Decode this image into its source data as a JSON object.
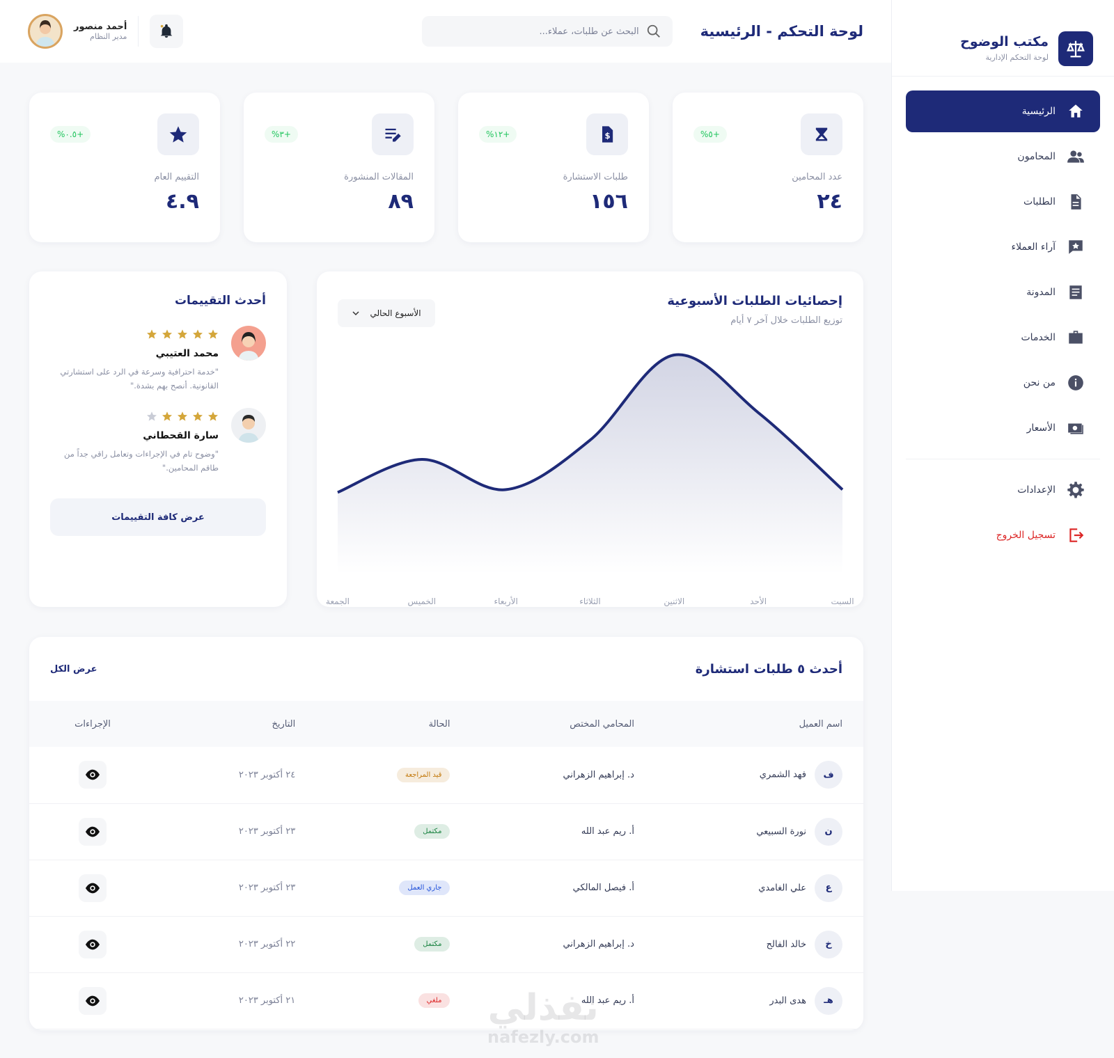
{
  "sidebar": {
    "brand": "مكتب الوضوح",
    "subtitle": "لوحة التحكم الإدارية",
    "nav": [
      "الرئيسية",
      "المحامون",
      "الطلبات",
      "آراء العملاء",
      "المدونة",
      "الخدمات",
      "من نحن",
      "الأسعار"
    ],
    "settings": "الإعدادات",
    "logout": "تسجيل الخروج"
  },
  "header": {
    "title": "لوحة التحكم - الرئيسية",
    "search_placeholder": "البحث عن طلبات، عملاء...",
    "user_name": "أحمد منصور",
    "user_role": "مدير النظام"
  },
  "stats": [
    {
      "label": "عدد المحامين",
      "value": "٢٤",
      "change": "+٥%"
    },
    {
      "label": "طلبات الاستشارة",
      "value": "١٥٦",
      "change": "+١٢%"
    },
    {
      "label": "المقالات المنشورة",
      "value": "٨٩",
      "change": "+٣%"
    },
    {
      "label": "التقييم العام",
      "value": "٤.٩",
      "change": "+٠.٥%"
    }
  ],
  "chart_data": {
    "type": "line",
    "title": "إحصائيات الطلبات الأسبوعية",
    "subtitle": "توزيع الطلبات خلال آخر ٧ أيام",
    "period": "الأسبوع الحالي",
    "categories": [
      "السبت",
      "الأحد",
      "الاثنين",
      "الثلاثاء",
      "الأربعاء",
      "الخميس",
      "الجمعة"
    ],
    "values": [
      27,
      55,
      76,
      45,
      27,
      38,
      26
    ],
    "color": "#1e2a78"
  },
  "reviews": {
    "title": "أحدث التقييمات",
    "items": [
      {
        "name": "محمد العتيبي",
        "rating": 5,
        "text": "\"خدمة احترافية وسرعة في الرد على استشارتي القانونية. أنصح بهم بشدة.\""
      },
      {
        "name": "سارة القحطاني",
        "rating": 4,
        "text": "\"وضوح تام في الإجراءات وتعامل راقي جداً من طاقم المحامين.\""
      }
    ],
    "button": "عرض كافة التقييمات"
  },
  "table": {
    "title": "أحدث ٥ طلبات استشارة",
    "view_all": "عرض الكل",
    "headers": [
      "اسم العميل",
      "المحامي المختص",
      "الحالة",
      "التاريخ",
      "الإجراءات"
    ],
    "rows": [
      {
        "initial": "ف",
        "client": "فهد الشمري",
        "lawyer": "د. إبراهيم الزهراني",
        "status": "قيد المراجعة",
        "status_color": "#c2780a",
        "date": "٢٤ أكتوبر ٢٠٢٣"
      },
      {
        "initial": "ن",
        "client": "نورة السبيعي",
        "lawyer": "أ. ريم عبد الله",
        "status": "مكتمل",
        "status_color": "#15803d",
        "date": "٢٣ أكتوبر ٢٠٢٣"
      },
      {
        "initial": "ع",
        "client": "علي الغامدي",
        "lawyer": "أ. فيصل المالكي",
        "status": "جاري العمل",
        "status_color": "#1d4ed8",
        "date": "٢٣ أكتوبر ٢٠٢٣"
      },
      {
        "initial": "خ",
        "client": "خالد الفالح",
        "lawyer": "د. إبراهيم الزهراني",
        "status": "مكتمل",
        "status_color": "#15803d",
        "date": "٢٢ أكتوبر ٢٠٢٣"
      },
      {
        "initial": "هـ",
        "client": "هدى البدر",
        "lawyer": "أ. ريم عبد الله",
        "status": "ملغي",
        "status_color": "#dc2626",
        "date": "٢١ أكتوبر ٢٠٢٣"
      }
    ]
  },
  "watermark": {
    "text": "نفذلي",
    "url": "nafezly.com"
  }
}
